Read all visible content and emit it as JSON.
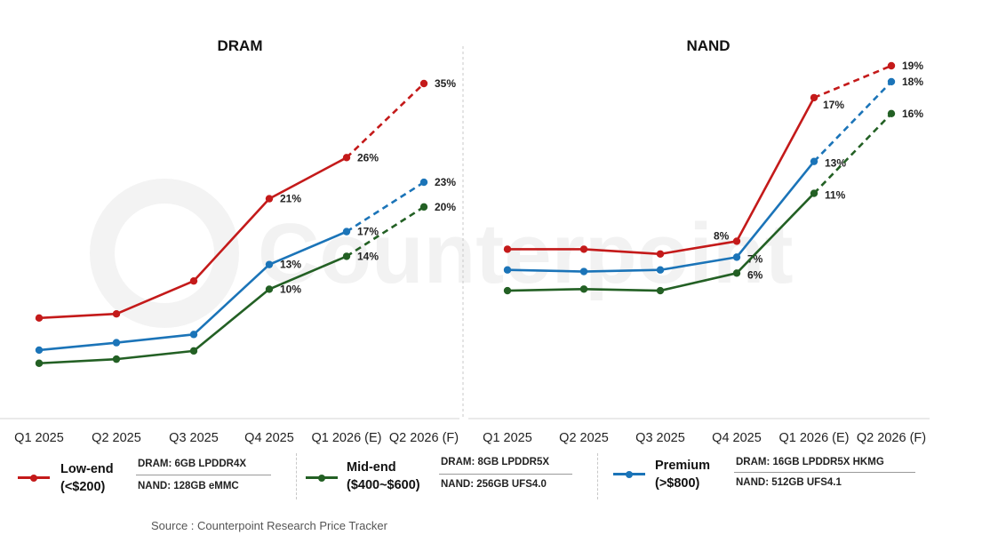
{
  "colors": {
    "low": "#c41a1a",
    "mid": "#236024",
    "premium": "#1b74b8"
  },
  "chart_data": [
    {
      "type": "line",
      "title": "DRAM",
      "categories": [
        "Q1 2025",
        "Q2 2025",
        "Q3 2025",
        "Q4 2025",
        "Q1 2026 (E)",
        "Q2 2026 (F)"
      ],
      "ylim": [
        0,
        35
      ],
      "grid": false,
      "forecast_from_index": 4,
      "series": [
        {
          "name": "Low-end",
          "key": "low",
          "values": [
            6.5,
            7,
            11,
            21,
            26,
            35
          ],
          "labels": [
            "",
            "",
            "",
            "21%",
            "26%",
            "35%"
          ]
        },
        {
          "name": "Premium",
          "key": "premium",
          "values": [
            2.6,
            3.5,
            4.5,
            13,
            17,
            23
          ],
          "labels": [
            "",
            "",
            "",
            "13%",
            "17%",
            "23%"
          ]
        },
        {
          "name": "Mid-end",
          "key": "mid",
          "values": [
            1,
            1.5,
            2.5,
            10,
            14,
            20
          ],
          "labels": [
            "",
            "",
            "",
            "10%",
            "14%",
            "20%"
          ]
        }
      ]
    },
    {
      "type": "line",
      "title": "NAND",
      "categories": [
        "Q1 2025",
        "Q2 2025",
        "Q3 2025",
        "Q4 2025",
        "Q1 2026 (E)",
        "Q2 2026 (F)"
      ],
      "ylim": [
        0,
        19
      ],
      "grid": false,
      "forecast_from_index": 4,
      "series": [
        {
          "name": "Low-end",
          "key": "low",
          "values": [
            7.5,
            7.5,
            7.2,
            8,
            17,
            19
          ],
          "labels": [
            "",
            "",
            "",
            "8%",
            "17%",
            "19%"
          ]
        },
        {
          "name": "Premium",
          "key": "premium",
          "values": [
            6.2,
            6.1,
            6.2,
            7,
            13,
            18
          ],
          "labels": [
            "",
            "",
            "",
            "7%",
            "13%",
            "18%"
          ]
        },
        {
          "name": "Mid-end",
          "key": "mid",
          "values": [
            4.9,
            5,
            4.9,
            6,
            11,
            16
          ],
          "labels": [
            "",
            "",
            "",
            "6%",
            "11%",
            "16%"
          ]
        }
      ]
    }
  ],
  "watermark": {
    "text": "Counterpoint"
  },
  "legend": {
    "items": [
      {
        "key": "low",
        "name_line1": "Low-end",
        "name_line2": "(<$200)",
        "dram": "DRAM: 6GB LPDDR4X",
        "nand": "NAND: 128GB eMMC"
      },
      {
        "key": "mid",
        "name_line1": "Mid-end",
        "name_line2": "($400~$600)",
        "dram": "DRAM: 8GB LPDDR5X",
        "nand": "NAND: 256GB UFS4.0"
      },
      {
        "key": "premium",
        "name_line1": "Premium",
        "name_line2": "(>$800)",
        "dram": "DRAM: 16GB LPDDR5X HKMG",
        "nand": "NAND: 512GB UFS4.1"
      }
    ]
  },
  "source": "Source : Counterpoint Research Price Tracker"
}
